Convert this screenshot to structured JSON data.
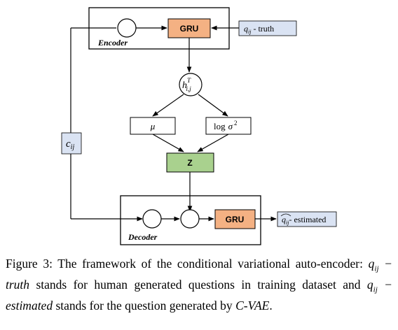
{
  "nodes": {
    "encoder_label": "Encoder",
    "decoder_label": "Decoder",
    "gru_encoder": "GRU",
    "gru_decoder": "GRU",
    "q_truth_sym": "q",
    "q_truth_sub": "ij",
    "q_truth_text": " - truth",
    "q_est_sym": "q",
    "q_est_sub": "ij",
    "q_est_text": "- estimated",
    "h_sym": "h",
    "h_sup": "T",
    "h_sub": "i,j",
    "mu": "μ",
    "log_sigma_log": "log",
    "log_sigma_sym": "σ",
    "log_sigma_sup": "2",
    "z": "Z",
    "c_sym": "c",
    "c_sub": "ij"
  },
  "caption": {
    "prefix": "Figure 3:  The framework of the conditional variational auto-encoder: ",
    "math1": "q",
    "math1_sub": "ij",
    "math1_rest": " − truth",
    "middle": " stands for human generated questions in training dataset and ",
    "math2": "q",
    "math2_sub": "ij",
    "math2_rest": " − estimated",
    "middle2": " stands for the question generated by ",
    "model": "C-VAE",
    "end": "."
  },
  "colors": {
    "gru_fill": "#f4b183",
    "z_fill": "#a9d18e",
    "label_fill": "#dae3f3",
    "line": "#000000"
  }
}
